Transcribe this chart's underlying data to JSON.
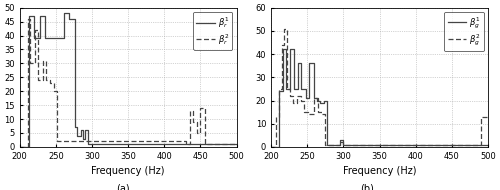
{
  "subplot_a": {
    "title": "(a)",
    "xlabel": "Frequency (Hz)",
    "xlim": [
      200,
      500
    ],
    "ylim": [
      0,
      50
    ],
    "yticks": [
      0,
      5,
      10,
      15,
      20,
      25,
      30,
      35,
      40,
      45,
      50
    ],
    "xticks": [
      200,
      250,
      300,
      350,
      400,
      450,
      500
    ],
    "legend": [
      "$\\beta^1_r$",
      "$\\beta^2_r$"
    ],
    "line1_x": [
      200,
      213,
      213,
      220,
      220,
      228,
      228,
      235,
      235,
      262,
      262,
      268,
      268,
      276,
      276,
      280,
      280,
      285,
      285,
      288,
      288,
      291,
      291,
      295,
      295,
      300,
      300,
      500
    ],
    "line1_y": [
      0,
      0,
      47,
      47,
      39,
      39,
      47,
      47,
      39,
      39,
      48,
      48,
      46,
      46,
      7,
      7,
      4,
      4,
      6,
      6,
      3,
      3,
      6,
      6,
      1,
      1,
      1,
      1
    ],
    "line2_x": [
      200,
      211,
      211,
      215,
      215,
      221,
      221,
      226,
      226,
      232,
      232,
      237,
      237,
      242,
      242,
      247,
      247,
      252,
      252,
      430,
      430,
      435,
      435,
      440,
      440,
      445,
      445,
      450,
      450,
      456,
      456,
      500
    ],
    "line2_y": [
      0,
      0,
      46,
      46,
      30,
      30,
      42,
      42,
      24,
      24,
      31,
      31,
      24,
      24,
      23,
      23,
      20,
      20,
      2,
      2,
      1,
      1,
      13,
      13,
      9,
      9,
      5,
      5,
      14,
      14,
      1,
      1
    ]
  },
  "subplot_b": {
    "title": "(b)",
    "xlabel": "Frequency (Hz)",
    "xlim": [
      200,
      500
    ],
    "ylim": [
      0,
      60
    ],
    "yticks": [
      0,
      10,
      20,
      30,
      40,
      50,
      60
    ],
    "xticks": [
      200,
      250,
      300,
      350,
      400,
      450,
      500
    ],
    "legend": [
      "$\\beta^1_g$",
      "$\\beta^2_g$"
    ],
    "line1_x": [
      200,
      211,
      211,
      216,
      216,
      221,
      221,
      226,
      226,
      232,
      232,
      237,
      237,
      242,
      242,
      248,
      248,
      253,
      253,
      259,
      259,
      263,
      263,
      268,
      268,
      273,
      273,
      278,
      278,
      295,
      295,
      300,
      300,
      500
    ],
    "line1_y": [
      0,
      0,
      24,
      24,
      42,
      42,
      25,
      25,
      42,
      42,
      25,
      25,
      36,
      36,
      25,
      25,
      21,
      21,
      36,
      36,
      21,
      21,
      20,
      20,
      19,
      19,
      20,
      20,
      1,
      1,
      3,
      3,
      1,
      1
    ],
    "line2_x": [
      200,
      207,
      207,
      211,
      211,
      215,
      215,
      218,
      218,
      222,
      222,
      226,
      226,
      231,
      231,
      236,
      236,
      241,
      241,
      246,
      246,
      251,
      251,
      256,
      256,
      260,
      260,
      265,
      265,
      270,
      270,
      275,
      275,
      295,
      295,
      300,
      300,
      490,
      490,
      500
    ],
    "line2_y": [
      0,
      0,
      13,
      13,
      25,
      25,
      44,
      44,
      51,
      51,
      25,
      25,
      22,
      22,
      19,
      19,
      22,
      22,
      20,
      20,
      15,
      15,
      14,
      14,
      14,
      14,
      21,
      21,
      15,
      15,
      14,
      14,
      1,
      1,
      2,
      2,
      1,
      1,
      13,
      13
    ]
  },
  "line_color": "#444444",
  "line_lw": 0.9,
  "grid_color": "#aaaaaa",
  "grid_lw": 0.5,
  "tick_fontsize": 6,
  "label_fontsize": 7,
  "legend_fontsize": 6
}
